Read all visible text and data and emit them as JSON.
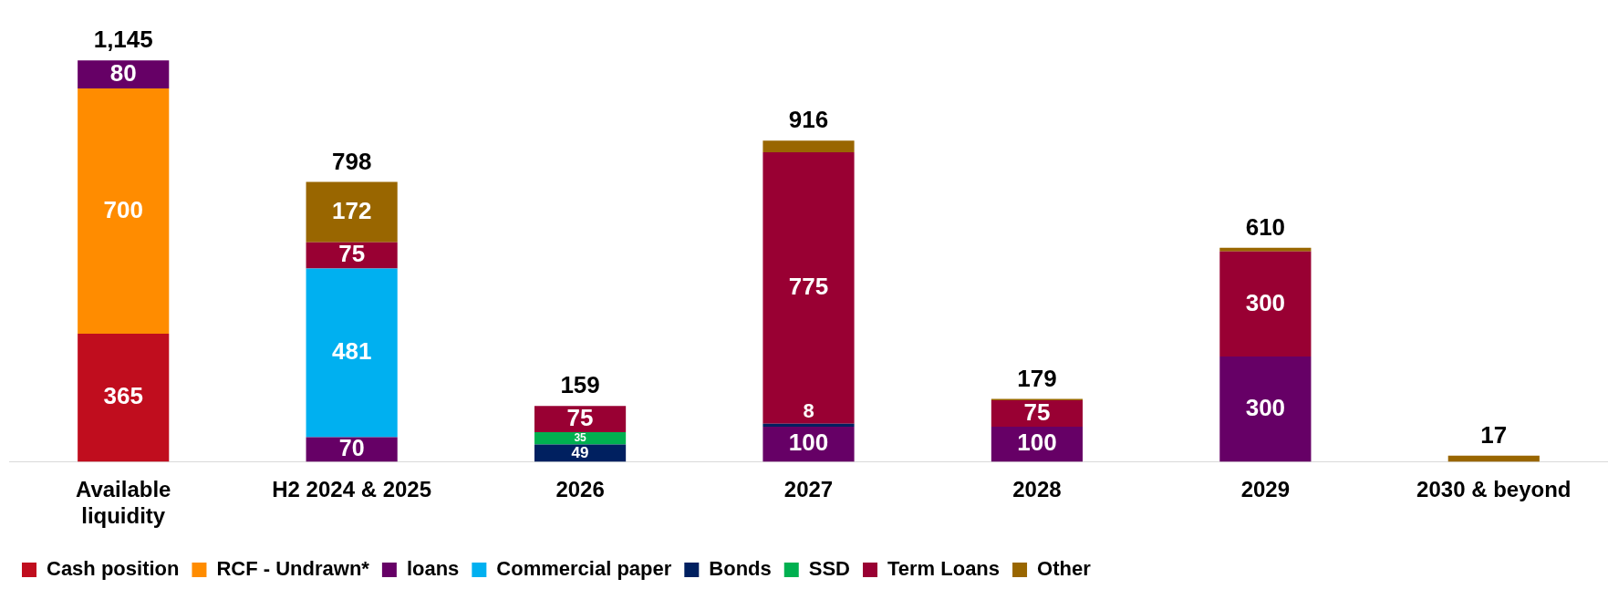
{
  "chart_data": {
    "type": "bar",
    "stacked": true,
    "legend": "bottom",
    "tick_labels": "x",
    "grid": false,
    "categories": [
      "Available liquidity",
      "H2 2024 & 2025",
      "2026",
      "2027",
      "2028",
      "2029",
      "2030 & beyond"
    ],
    "series": [
      {
        "name": "Cash position",
        "color": "#c00d1e",
        "values": [
          365,
          null,
          null,
          null,
          null,
          null,
          null
        ],
        "value_labels": [
          "365",
          null,
          null,
          null,
          null,
          null,
          null
        ]
      },
      {
        "name": "RCF - Undrawn*",
        "color": "#ff8c00",
        "values": [
          700,
          null,
          null,
          null,
          null,
          null,
          null
        ],
        "value_labels": [
          "700",
          null,
          null,
          null,
          null,
          null,
          null
        ]
      },
      {
        "name": "loans",
        "color": "#660066",
        "values": [
          80,
          70,
          null,
          100,
          100,
          300,
          null
        ],
        "value_labels": [
          "80",
          "70",
          null,
          "100",
          "100",
          "300",
          null
        ]
      },
      {
        "name": "Commercial paper",
        "color": "#00b0f0",
        "values": [
          null,
          481,
          null,
          null,
          null,
          null,
          null
        ],
        "value_labels": [
          null,
          "481",
          null,
          null,
          null,
          null,
          null
        ]
      },
      {
        "name": "Bonds",
        "color": "#002060",
        "values": [
          null,
          null,
          49,
          8,
          null,
          null,
          null
        ],
        "value_labels": [
          null,
          null,
          "49",
          "8",
          null,
          null,
          null
        ]
      },
      {
        "name": "SSD",
        "color": "#00b050",
        "values": [
          null,
          null,
          35,
          null,
          null,
          null,
          null
        ],
        "value_labels": [
          null,
          null,
          "35",
          null,
          null,
          null,
          null
        ]
      },
      {
        "name": "Term Loans",
        "color": "#990033",
        "values": [
          null,
          75,
          75,
          775,
          75,
          300,
          null
        ],
        "value_labels": [
          null,
          "75",
          "75",
          "775",
          "75",
          "300",
          null
        ]
      },
      {
        "name": "Other",
        "color": "#996600",
        "values": [
          null,
          172,
          null,
          33,
          4,
          10,
          17
        ],
        "value_labels": [
          null,
          "172",
          null,
          null,
          null,
          null,
          null
        ]
      }
    ],
    "totals": [
      "1,145",
      "798",
      "159",
      "916",
      "179",
      "610",
      "17"
    ]
  }
}
